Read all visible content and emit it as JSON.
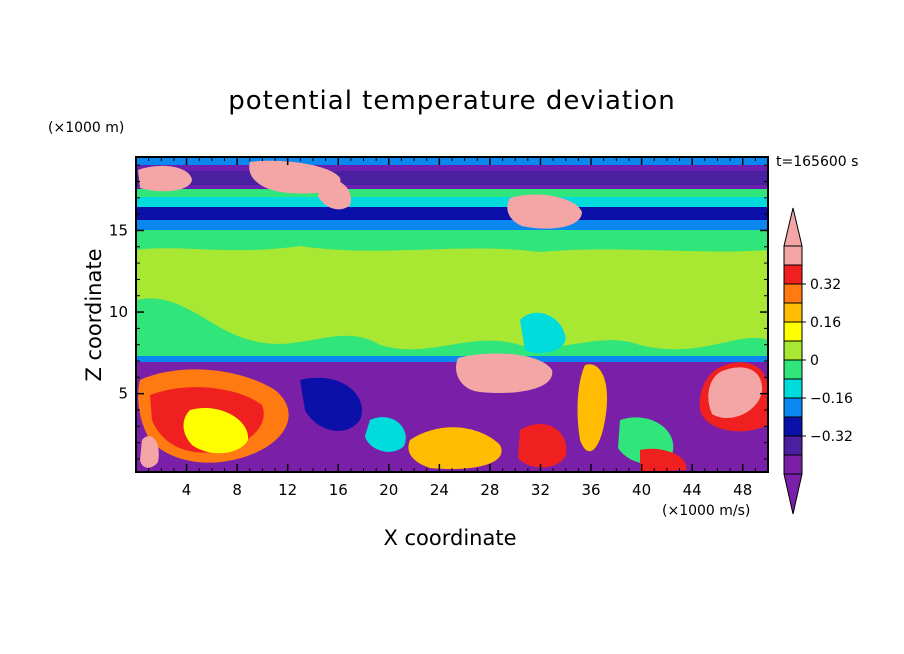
{
  "chart_data": {
    "type": "heatmap",
    "title": "potential temperature deviation",
    "xlabel": "X coordinate",
    "ylabel": "Z coordinate",
    "x_unit": "(×1000 m/s)",
    "y_unit": "(×1000 m)",
    "time_label": "t=165600 s",
    "xlim": [
      0,
      50
    ],
    "ylim": [
      0.2,
      19.5
    ],
    "x_ticks": [
      4,
      8,
      12,
      16,
      20,
      24,
      28,
      32,
      36,
      40,
      44,
      48
    ],
    "y_ticks": [
      5,
      10,
      15
    ],
    "colorbar": {
      "levels": [
        0.32,
        0.16,
        0,
        -0.16,
        -0.32
      ],
      "level_labels": [
        "0.32",
        "0.16",
        "0",
        "−0.16",
        "−0.32"
      ],
      "colors": [
        "#f4a6a6",
        "#f02020",
        "#ff7a10",
        "#ffbc00",
        "#ffff00",
        "#a8e832",
        "#30e57a",
        "#00dcdc",
        "#0a88f0",
        "#0a10a8",
        "#4a20a0",
        "#7a1fa8"
      ],
      "upper_extend_color": "#f4a6a6",
      "lower_extend_color": "#7a1fa8"
    }
  }
}
